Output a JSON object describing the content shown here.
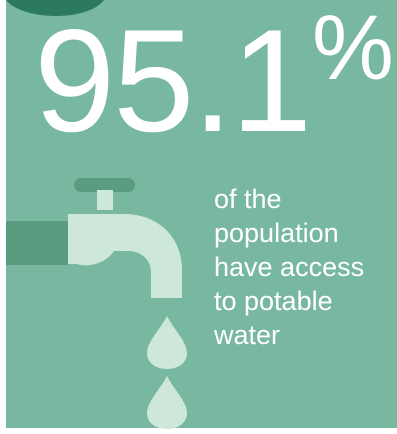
{
  "infographic": {
    "statistic": {
      "value": "95.1",
      "unit": "%"
    },
    "caption": {
      "line_1": "of the",
      "line_2": "population",
      "line_3": "have access",
      "line_4": "to potable",
      "line_5": "water"
    },
    "icons": {
      "main": "water-tap-icon",
      "drops": "water-drop-icon",
      "corner": "circle-badge-icon"
    },
    "colors": {
      "background": "#79b8a0",
      "tap_light": "#cde8db",
      "pipe": "#5a9c80",
      "corner_badge": "#2b7a5e",
      "frame": "#ffffff",
      "text": "#ffffff"
    }
  }
}
